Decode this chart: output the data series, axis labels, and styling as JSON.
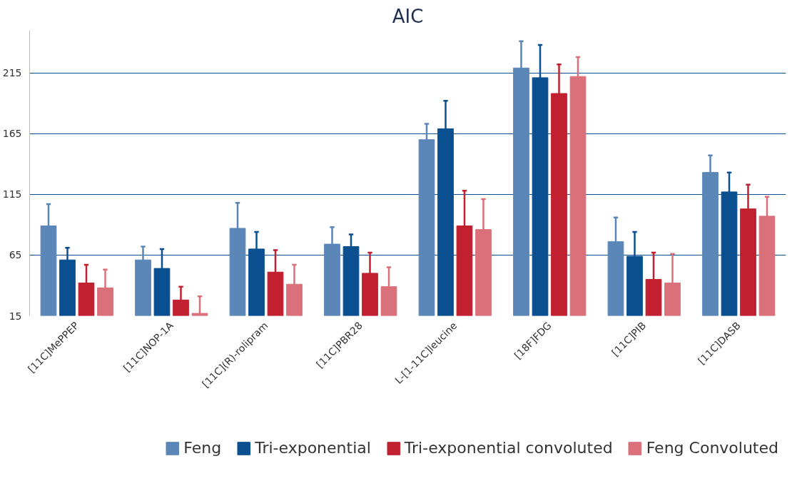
{
  "chart_data": {
    "type": "bar",
    "title": "AIC",
    "categories": [
      "[11C]MePPEP",
      "[11C]NOP-1A",
      "[11C](R)-rolipram",
      "[11C]PBR28",
      "L-[1-11C]leucine",
      "[18F]FDG",
      "[11C]PIB",
      "[11C]DASB"
    ],
    "series": [
      {
        "name": "Feng",
        "color": "#5b86b8",
        "values": [
          89,
          61,
          87,
          74,
          160,
          219,
          76,
          133
        ],
        "errors": [
          [
            89,
            107
          ],
          [
            61,
            72
          ],
          [
            87,
            108
          ],
          [
            74,
            88
          ],
          [
            160,
            173
          ],
          [
            219,
            241
          ],
          [
            76,
            96
          ],
          [
            133,
            147
          ]
        ]
      },
      {
        "name": "Tri-exponential",
        "color": "#0a4f8f",
        "values": [
          61,
          54,
          70,
          72,
          169,
          211,
          64,
          117
        ],
        "errors": [
          [
            61,
            71
          ],
          [
            54,
            70
          ],
          [
            70,
            84
          ],
          [
            72,
            82
          ],
          [
            169,
            192
          ],
          [
            211,
            238
          ],
          [
            64,
            84
          ],
          [
            117,
            133
          ]
        ]
      },
      {
        "name": "Tri-exponential convoluted",
        "color": "#c0202f",
        "values": [
          42,
          28,
          51,
          50,
          89,
          198,
          45,
          103
        ],
        "errors": [
          [
            42,
            57
          ],
          [
            28,
            39
          ],
          [
            51,
            69
          ],
          [
            50,
            67
          ],
          [
            89,
            118
          ],
          [
            198,
            222
          ],
          [
            45,
            67
          ],
          [
            103,
            123
          ]
        ]
      },
      {
        "name": "Feng Convoluted",
        "color": "#d9707a",
        "values": [
          38,
          17,
          41,
          39,
          86,
          212,
          42,
          97
        ],
        "errors": [
          [
            38,
            53
          ],
          [
            17,
            31
          ],
          [
            41,
            57
          ],
          [
            39,
            55
          ],
          [
            86,
            111
          ],
          [
            212,
            228
          ],
          [
            42,
            66
          ],
          [
            97,
            113
          ]
        ]
      }
    ],
    "ylim": [
      15,
      250
    ],
    "yticks": [
      15,
      65,
      115,
      165,
      215
    ],
    "grid": "y",
    "legend": "bottom"
  }
}
